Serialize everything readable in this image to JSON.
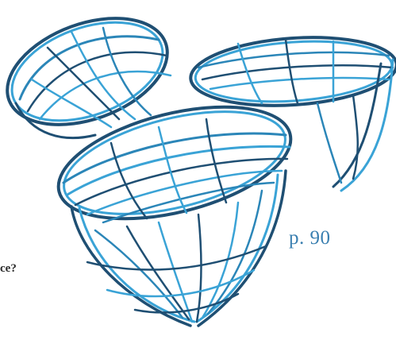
{
  "image": {
    "subject": "wire-sculpture",
    "colors": {
      "wire_light": "#3aa3d6",
      "wire_dark": "#1f4f73",
      "wire_mid": "#2b86b8",
      "caption": "#3a7fb0",
      "text": "#2b2b2b"
    }
  },
  "page_ref": "p. 90",
  "cut_text": "ce?"
}
